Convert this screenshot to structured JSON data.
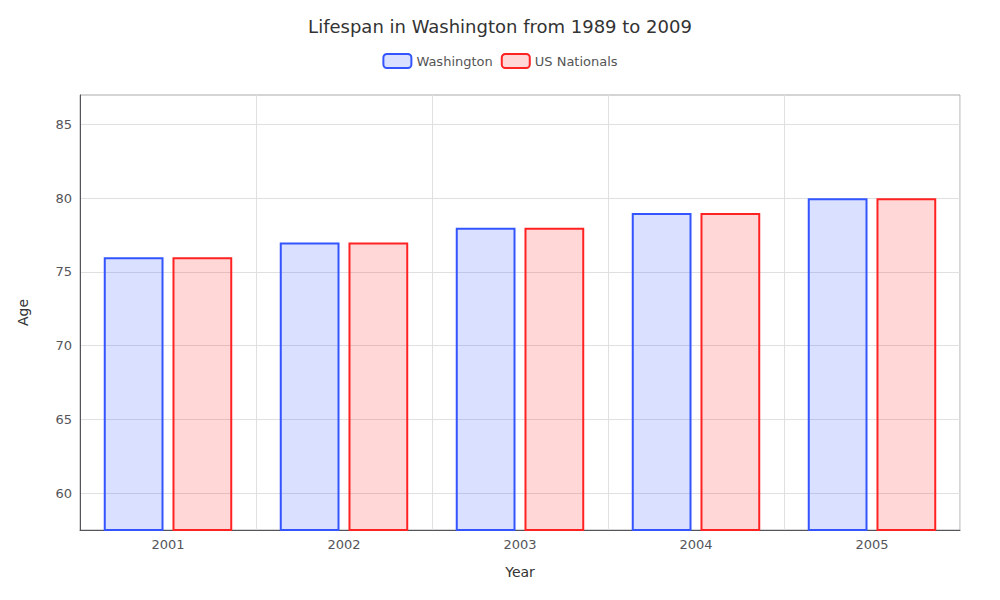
{
  "chart_data": {
    "type": "bar",
    "title": "Lifespan in Washington from 1989 to 2009",
    "x_label": "Year",
    "y_label": "Age",
    "categories": [
      "2001",
      "2002",
      "2003",
      "2004",
      "2005"
    ],
    "series": [
      {
        "name": "Washington",
        "color": "#3355ff",
        "values": [
          76,
          77,
          78,
          79,
          80
        ]
      },
      {
        "name": "US Nationals",
        "color": "#ff2222",
        "values": [
          76,
          77,
          78,
          79,
          80
        ]
      }
    ],
    "ylim": [
      57.5,
      87
    ],
    "yticks": [
      60,
      65,
      70,
      75,
      80,
      85
    ],
    "grid": true,
    "legend": "top"
  }
}
